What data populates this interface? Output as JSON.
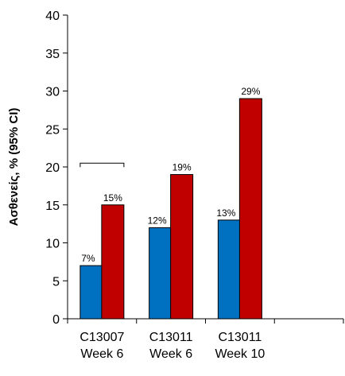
{
  "chart_data": {
    "type": "bar",
    "title": "",
    "xlabel": "",
    "ylabel": "Ασθενείς, % (95% CI)",
    "ylim": [
      0,
      40
    ],
    "yticks": [
      0,
      5,
      10,
      15,
      20,
      25,
      30,
      35,
      40
    ],
    "grid": false,
    "categories": [
      {
        "line1": "C13007",
        "line2": "Week 6"
      },
      {
        "line1": "C13011",
        "line2": "Week 6"
      },
      {
        "line1": "C13011",
        "line2": "Week 10"
      }
    ],
    "series": [
      {
        "color": "#0070C0",
        "values": [
          7,
          12,
          13
        ],
        "labels": [
          "7%",
          "12%",
          "13%"
        ]
      },
      {
        "color": "#C00000",
        "values": [
          15,
          19,
          29
        ],
        "labels": [
          "15%",
          "19%",
          "29%"
        ]
      }
    ],
    "annotations": [
      {
        "type": "bracket",
        "category_index": 0,
        "y": 20.5
      }
    ]
  }
}
